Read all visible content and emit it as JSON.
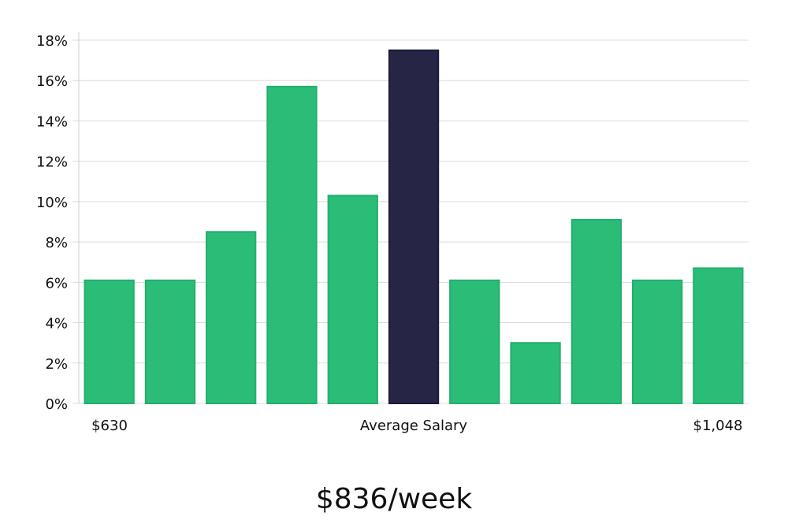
{
  "chart_data": {
    "type": "bar",
    "categories": [
      "1",
      "2",
      "3",
      "4",
      "5",
      "6",
      "7",
      "8",
      "9",
      "10",
      "11"
    ],
    "values": [
      6.1,
      6.1,
      8.5,
      15.7,
      10.3,
      17.5,
      6.1,
      3.0,
      9.1,
      6.1,
      6.7
    ],
    "highlight_index": 5,
    "ylim": [
      0,
      18
    ],
    "yticks": [
      "0%",
      "2%",
      "4%",
      "6%",
      "8%",
      "10%",
      "12%",
      "14%",
      "16%",
      "18%"
    ],
    "x_labels": {
      "left": "$630",
      "center": "Average Salary",
      "right": "$1,048"
    },
    "grid": true,
    "colors": {
      "bar": "#2bbd77",
      "bar_stroke": "#22b06c",
      "highlight": "#272546",
      "highlight_stroke": "#1c1a3a",
      "grid": "#dcdcdc",
      "axis": "#cfcfcf"
    }
  },
  "headline": "$836/week"
}
